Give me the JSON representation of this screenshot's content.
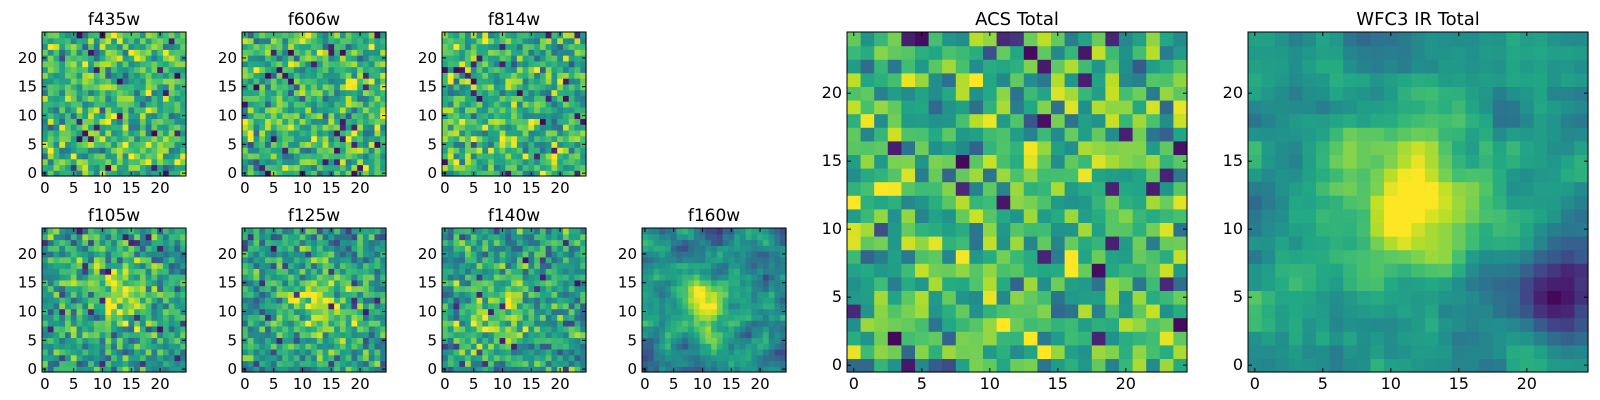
{
  "chart_data": [
    {
      "type": "heatmap",
      "title": "f435w",
      "xticks": [
        "0",
        "5",
        "10",
        "15",
        "20"
      ],
      "yticks": [
        "0",
        "5",
        "10",
        "15",
        "20"
      ],
      "grid_size": 25,
      "xlim": [
        -0.5,
        24.5
      ],
      "ylim": [
        -0.5,
        24.5
      ],
      "colormap": "viridis",
      "peak": [
        12,
        11
      ],
      "pattern": "noise",
      "seed": 11
    },
    {
      "type": "heatmap",
      "title": "f606w",
      "xticks": [
        "0",
        "5",
        "10",
        "15",
        "20"
      ],
      "yticks": [
        "0",
        "5",
        "10",
        "15",
        "20"
      ],
      "grid_size": 25,
      "xlim": [
        -0.5,
        24.5
      ],
      "ylim": [
        -0.5,
        24.5
      ],
      "colormap": "viridis",
      "peak": [
        12,
        11
      ],
      "pattern": "noise",
      "seed": 23
    },
    {
      "type": "heatmap",
      "title": "f814w",
      "xticks": [
        "0",
        "5",
        "10",
        "15",
        "20"
      ],
      "yticks": [
        "0",
        "5",
        "10",
        "15",
        "20"
      ],
      "grid_size": 25,
      "xlim": [
        -0.5,
        24.5
      ],
      "ylim": [
        -0.5,
        24.5
      ],
      "colormap": "viridis",
      "peak": [
        12,
        11
      ],
      "pattern": "noise",
      "seed": 37
    },
    {
      "type": "heatmap",
      "title": "f105w",
      "xticks": [
        "0",
        "5",
        "10",
        "15",
        "20"
      ],
      "yticks": [
        "0",
        "5",
        "10",
        "15",
        "20"
      ],
      "grid_size": 25,
      "xlim": [
        -0.5,
        24.5
      ],
      "ylim": [
        -0.5,
        24.5
      ],
      "colormap": "viridis",
      "peak": [
        13,
        13
      ],
      "pattern": "source-noisy",
      "seed": 41
    },
    {
      "type": "heatmap",
      "title": "f125w",
      "xticks": [
        "0",
        "5",
        "10",
        "15",
        "20"
      ],
      "yticks": [
        "0",
        "5",
        "10",
        "15",
        "20"
      ],
      "grid_size": 25,
      "xlim": [
        -0.5,
        24.5
      ],
      "ylim": [
        -0.5,
        24.5
      ],
      "colormap": "viridis",
      "peak": [
        13,
        11
      ],
      "pattern": "source-noisy",
      "seed": 53
    },
    {
      "type": "heatmap",
      "title": "f140w",
      "xticks": [
        "0",
        "5",
        "10",
        "15",
        "20"
      ],
      "yticks": [
        "0",
        "5",
        "10",
        "15",
        "20"
      ],
      "grid_size": 25,
      "xlim": [
        -0.5,
        24.5
      ],
      "ylim": [
        -0.5,
        24.5
      ],
      "colormap": "viridis",
      "peak": [
        9,
        10
      ],
      "pattern": "source-noisy",
      "seed": 67
    },
    {
      "type": "heatmap",
      "title": "f160w",
      "xticks": [
        "0",
        "5",
        "10",
        "15",
        "20"
      ],
      "yticks": [
        "0",
        "5",
        "10",
        "15",
        "20"
      ],
      "grid_size": 25,
      "xlim": [
        -0.5,
        24.5
      ],
      "ylim": [
        -0.5,
        24.5
      ],
      "colormap": "viridis",
      "peak": [
        11,
        12
      ],
      "pattern": "source",
      "seed": 79
    },
    {
      "type": "heatmap",
      "title": "ACS Total",
      "xticks": [
        "0",
        "5",
        "10",
        "15",
        "20"
      ],
      "yticks": [
        "0",
        "5",
        "10",
        "15",
        "20"
      ],
      "grid_size": 25,
      "xlim": [
        -0.5,
        24.5
      ],
      "ylim": [
        -0.5,
        24.5
      ],
      "colormap": "viridis",
      "peak": [
        12,
        12
      ],
      "pattern": "noise",
      "seed": 97
    },
    {
      "type": "heatmap",
      "title": "WFC3 IR Total",
      "xticks": [
        "0",
        "5",
        "10",
        "15",
        "20"
      ],
      "yticks": [
        "0",
        "5",
        "10",
        "15",
        "20"
      ],
      "grid_size": 25,
      "xlim": [
        -0.5,
        24.5
      ],
      "ylim": [
        -0.5,
        24.5
      ],
      "colormap": "viridis",
      "peak": [
        11,
        12
      ],
      "pattern": "source-smooth",
      "seed": 131
    }
  ]
}
